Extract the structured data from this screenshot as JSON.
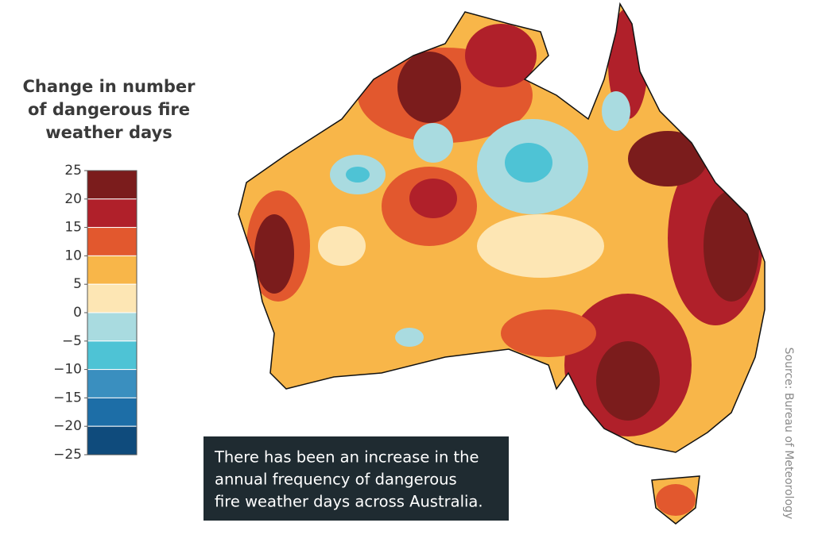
{
  "legend": {
    "title": [
      "Change in number",
      "of dangerous fire",
      "weather days"
    ],
    "ticks": [
      25,
      20,
      15,
      10,
      5,
      0,
      {
        "value": -5,
        "label": "−5"
      },
      {
        "value": -10,
        "label": "−10"
      },
      {
        "value": -15,
        "label": "−15"
      },
      {
        "value": -20,
        "label": "−20"
      },
      {
        "value": -25,
        "label": "−25"
      }
    ],
    "colors": [
      "#7b1c1c",
      "#b0202a",
      "#e2582e",
      "#f8b649",
      "#fde6b4",
      "#a9dbe0",
      "#4ec3d5",
      "#3a8fbf",
      "#1d6ea7",
      "#0f4b7c"
    ]
  },
  "note": [
    "There has been an increase in the",
    "annual frequency of dangerous",
    "fire weather days across Australia."
  ],
  "source": "Source: Bureau of Meteorology"
}
